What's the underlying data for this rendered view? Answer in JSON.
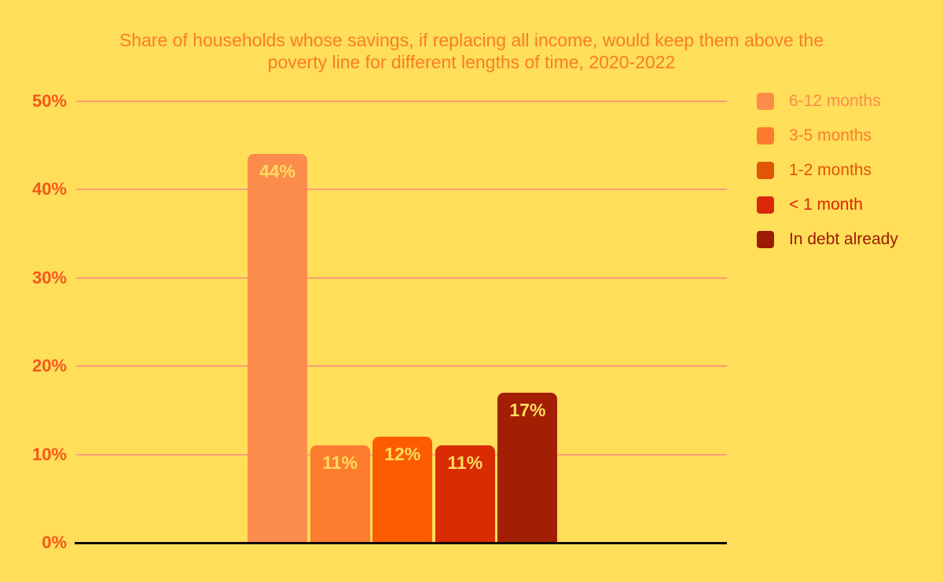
{
  "title": "Share of households whose savings, if replacing all income, would keep them above the\npoverty line for different lengths of time, 2020-2022",
  "colors": {
    "background": "#FFDE59",
    "title": "#F97C28",
    "tick_label": "#F4571C",
    "gridline": "#F99E78",
    "axis_line": "#0E0A06",
    "bar_value_label": "#FFDC5E"
  },
  "chart_data": {
    "type": "bar",
    "title": "Share of households whose savings, if replacing all income, would keep them above the poverty line for different lengths of time, 2020-2022",
    "categories": [
      "6-12 months",
      "3-5 months",
      "1-2 months",
      "< 1 month",
      "In debt already"
    ],
    "values": [
      44,
      11,
      12,
      11,
      17
    ],
    "bars": [
      {
        "label": "6-12 months",
        "value": 44,
        "value_label": "44%",
        "color": "#FC8C4C",
        "legend_color": "#FC8C4C"
      },
      {
        "label": "3-5 months",
        "value": 11,
        "value_label": "11%",
        "color": "#FC7B2F",
        "legend_color": "#FC7B2F"
      },
      {
        "label": "1-2 months",
        "value": 12,
        "value_label": "12%",
        "color": "#FE5C00",
        "legend_color": "#E05606"
      },
      {
        "label": "< 1 month",
        "value": 11,
        "value_label": "11%",
        "color": "#D92B04",
        "legend_color": "#D92807"
      },
      {
        "label": "In debt already",
        "value": 17,
        "value_label": "17%",
        "color": "#A21F03",
        "legend_color": "#9C1B02"
      }
    ],
    "xlabel": "",
    "ylabel": "",
    "ylim": [
      0,
      50
    ],
    "yticks": [
      {
        "value": 0,
        "label": "0%"
      },
      {
        "value": 10,
        "label": "10%"
      },
      {
        "value": 20,
        "label": "20%"
      },
      {
        "value": 30,
        "label": "30%"
      },
      {
        "value": 40,
        "label": "40%"
      },
      {
        "value": 50,
        "label": "50%"
      }
    ],
    "grid": true,
    "legend_position": "right"
  }
}
